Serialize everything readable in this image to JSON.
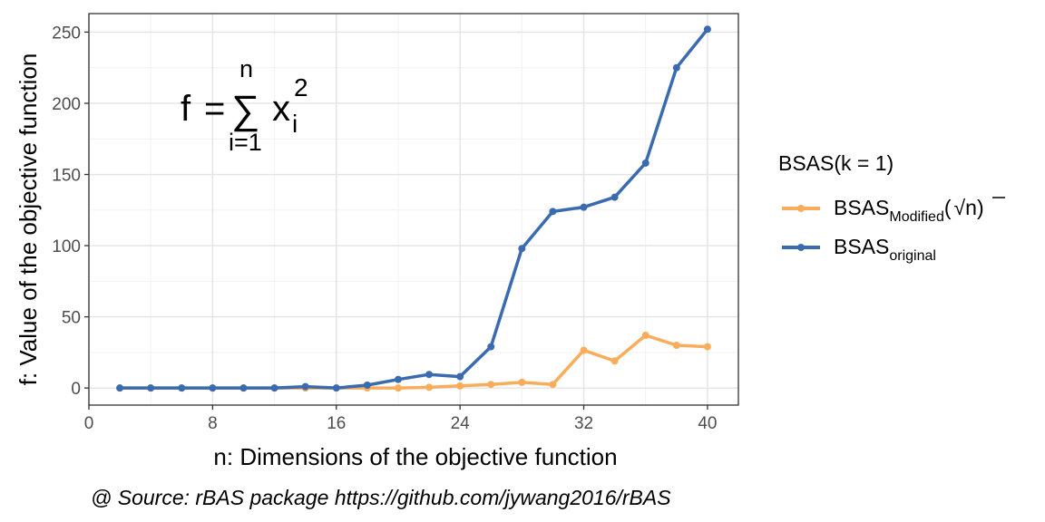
{
  "chart_data": {
    "type": "line",
    "xlabel": "n: Dimensions of the objective function",
    "ylabel": "f: Value of the objective function",
    "xlim": [
      0,
      42
    ],
    "ylim": [
      -12,
      263
    ],
    "x_ticks": [
      0,
      8,
      16,
      24,
      32,
      40
    ],
    "y_ticks": [
      0,
      50,
      100,
      150,
      200,
      250
    ],
    "x_tick_labels": [
      "0",
      "8",
      "16",
      "24",
      "32",
      "40"
    ],
    "y_tick_labels": [
      "0",
      "50",
      "100",
      "150",
      "200",
      "250"
    ],
    "grid": true,
    "legend_position": "right",
    "legend": {
      "title": "BSAS(k = 1)",
      "items": [
        {
          "base": "BSAS",
          "subscript": "Modified",
          "suffix_open": "(",
          "radical": "√",
          "radicand": "n",
          "suffix_close": ")"
        },
        {
          "base": "BSAS",
          "subscript": "original"
        }
      ]
    },
    "annotation": {
      "f": "f",
      "eq": "=",
      "sum": "∑",
      "upper": "n",
      "lower": "i=1",
      "var": "x",
      "sup": "2",
      "sub": "i"
    },
    "caption": "@ Source: rBAS package https://github.com/jywang2016/rBAS",
    "x": [
      2,
      4,
      6,
      8,
      10,
      12,
      14,
      16,
      18,
      20,
      22,
      24,
      26,
      28,
      30,
      32,
      34,
      36,
      38,
      40
    ],
    "series": [
      {
        "name": "BSAS original",
        "color": "#3a6bb0",
        "values": [
          0,
          0,
          0,
          0,
          0,
          0,
          1,
          0,
          2,
          6,
          9.5,
          8,
          29,
          98,
          124,
          127,
          134,
          158,
          225,
          252
        ]
      },
      {
        "name": "BSAS Modified (√n)",
        "color": "#f9ad5c",
        "values": [
          0,
          0,
          0,
          0,
          0,
          0,
          0,
          0,
          0,
          0,
          0.5,
          1.5,
          2.5,
          4,
          2.5,
          26.5,
          19,
          37,
          30,
          29
        ]
      }
    ]
  }
}
